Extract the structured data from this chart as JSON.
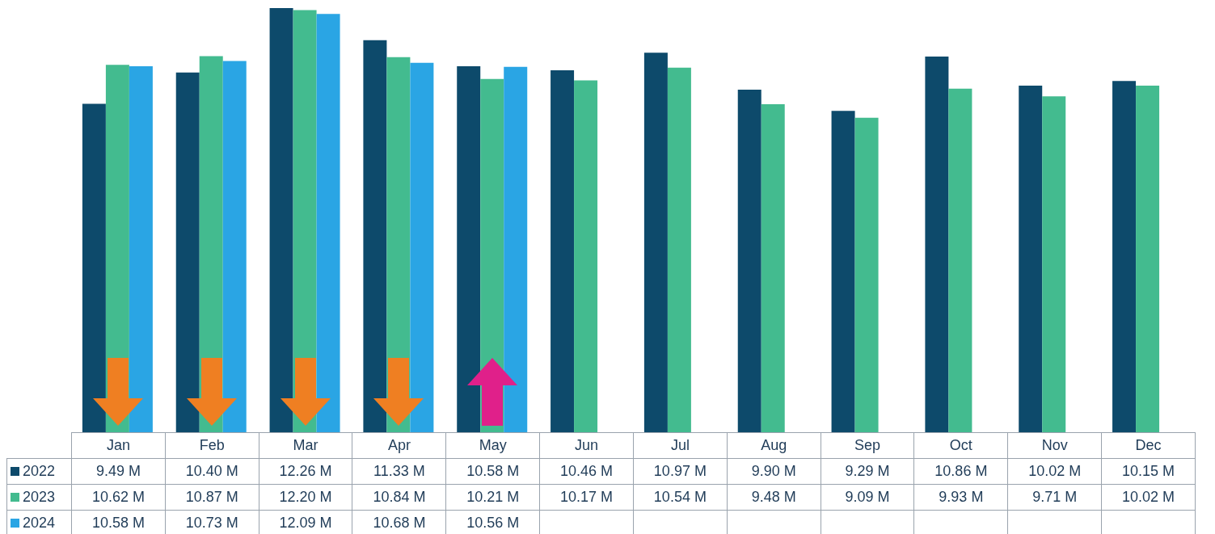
{
  "chart_data": {
    "type": "bar",
    "categories": [
      "Jan",
      "Feb",
      "Mar",
      "Apr",
      "May",
      "Jun",
      "Jul",
      "Aug",
      "Sep",
      "Oct",
      "Nov",
      "Dec"
    ],
    "series": [
      {
        "name": "2022",
        "color": "#0d4a6b",
        "values": [
          9.49,
          10.4,
          12.26,
          11.33,
          10.58,
          10.46,
          10.97,
          9.9,
          9.29,
          10.86,
          10.02,
          10.15
        ],
        "value_labels": [
          "9.49 M",
          "10.40 M",
          "12.26 M",
          "11.33 M",
          "10.58 M",
          "10.46 M",
          "10.97 M",
          "9.90 M",
          "9.29 M",
          "10.86 M",
          "10.02 M",
          "10.15 M"
        ]
      },
      {
        "name": "2023",
        "color": "#43bb8f",
        "values": [
          10.62,
          10.87,
          12.2,
          10.84,
          10.21,
          10.17,
          10.54,
          9.48,
          9.09,
          9.93,
          9.71,
          10.02
        ],
        "value_labels": [
          "10.62 M",
          "10.87 M",
          "12.20 M",
          "10.84 M",
          "10.21 M",
          "10.17 M",
          "10.54 M",
          "9.48 M",
          "9.09 M",
          "9.93 M",
          "9.71 M",
          "10.02 M"
        ]
      },
      {
        "name": "2024",
        "color": "#2aa5e4",
        "values": [
          10.58,
          10.73,
          12.09,
          10.68,
          10.56,
          null,
          null,
          null,
          null,
          null,
          null,
          null
        ],
        "value_labels": [
          "10.58 M",
          "10.73 M",
          "12.09 M",
          "10.68 M",
          "10.56 M",
          null,
          null,
          null,
          null,
          null,
          null,
          null
        ]
      }
    ],
    "legend": "bottom"
  }
}
